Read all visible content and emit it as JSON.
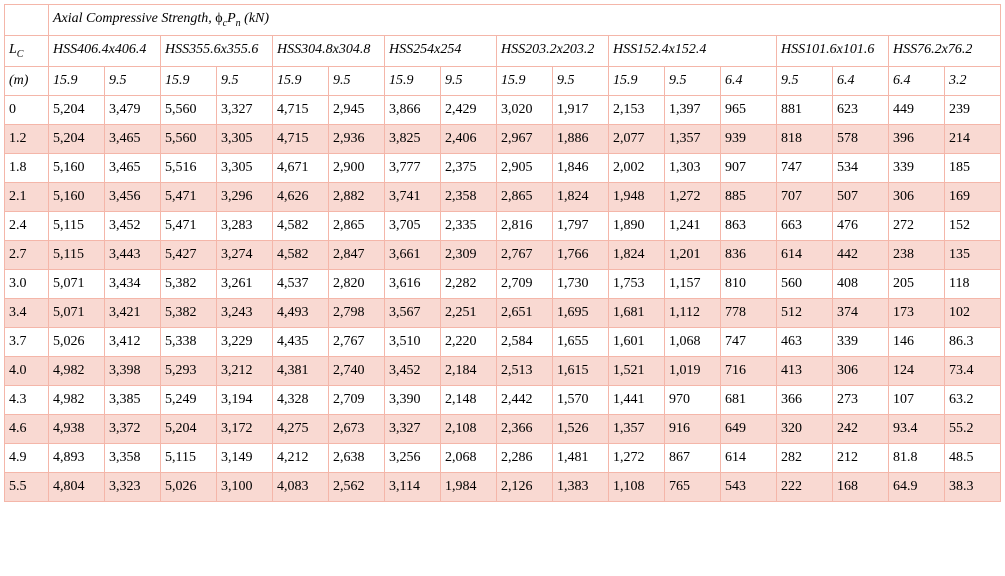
{
  "title": "Axial Compressive Strength, ϕₓPₙ (kN)",
  "lc_label": "L",
  "lc_sub": "C",
  "lc_unit": "(m)",
  "sections": [
    {
      "label": "HSS406.4x406.4",
      "span": 2
    },
    {
      "label": "HSS355.6x355.6",
      "span": 2
    },
    {
      "label": "HSS304.8x304.8",
      "span": 2
    },
    {
      "label": "HSS254x254",
      "span": 2
    },
    {
      "label": "HSS203.2x203.2",
      "span": 2
    },
    {
      "label": "HSS152.4x152.4",
      "span": 3
    },
    {
      "label": "HSS101.6x101.6",
      "span": 2
    },
    {
      "label": "HSS76.2x76.2",
      "span": 2
    }
  ],
  "thicknesses": [
    "15.9",
    "9.5",
    "15.9",
    "9.5",
    "15.9",
    "9.5",
    "15.9",
    "9.5",
    "15.9",
    "9.5",
    "15.9",
    "9.5",
    "6.4",
    "9.5",
    "6.4",
    "6.4",
    "3.2"
  ],
  "rows": [
    {
      "lc": "0",
      "v": [
        "5,204",
        "3,479",
        "5,560",
        "3,327",
        "4,715",
        "2,945",
        "3,866",
        "2,429",
        "3,020",
        "1,917",
        "2,153",
        "1,397",
        "965",
        "881",
        "623",
        "449",
        "239"
      ]
    },
    {
      "lc": "1.2",
      "v": [
        "5,204",
        "3,465",
        "5,560",
        "3,305",
        "4,715",
        "2,936",
        "3,825",
        "2,406",
        "2,967",
        "1,886",
        "2,077",
        "1,357",
        "939",
        "818",
        "578",
        "396",
        "214"
      ]
    },
    {
      "lc": "1.8",
      "v": [
        "5,160",
        "3,465",
        "5,516",
        "3,305",
        "4,671",
        "2,900",
        "3,777",
        "2,375",
        "2,905",
        "1,846",
        "2,002",
        "1,303",
        "907",
        "747",
        "534",
        "339",
        "185"
      ]
    },
    {
      "lc": "2.1",
      "v": [
        "5,160",
        "3,456",
        "5,471",
        "3,296",
        "4,626",
        "2,882",
        "3,741",
        "2,358",
        "2,865",
        "1,824",
        "1,948",
        "1,272",
        "885",
        "707",
        "507",
        "306",
        "169"
      ]
    },
    {
      "lc": "2.4",
      "v": [
        "5,115",
        "3,452",
        "5,471",
        "3,283",
        "4,582",
        "2,865",
        "3,705",
        "2,335",
        "2,816",
        "1,797",
        "1,890",
        "1,241",
        "863",
        "663",
        "476",
        "272",
        "152"
      ]
    },
    {
      "lc": "2.7",
      "v": [
        "5,115",
        "3,443",
        "5,427",
        "3,274",
        "4,582",
        "2,847",
        "3,661",
        "2,309",
        "2,767",
        "1,766",
        "1,824",
        "1,201",
        "836",
        "614",
        "442",
        "238",
        "135"
      ]
    },
    {
      "lc": "3.0",
      "v": [
        "5,071",
        "3,434",
        "5,382",
        "3,261",
        "4,537",
        "2,820",
        "3,616",
        "2,282",
        "2,709",
        "1,730",
        "1,753",
        "1,157",
        "810",
        "560",
        "408",
        "205",
        "118"
      ]
    },
    {
      "lc": "3.4",
      "v": [
        "5,071",
        "3,421",
        "5,382",
        "3,243",
        "4,493",
        "2,798",
        "3,567",
        "2,251",
        "2,651",
        "1,695",
        "1,681",
        "1,112",
        "778",
        "512",
        "374",
        "173",
        "102"
      ]
    },
    {
      "lc": "3.7",
      "v": [
        "5,026",
        "3,412",
        "5,338",
        "3,229",
        "4,435",
        "2,767",
        "3,510",
        "2,220",
        "2,584",
        "1,655",
        "1,601",
        "1,068",
        "747",
        "463",
        "339",
        "146",
        "86.3"
      ]
    },
    {
      "lc": "4.0",
      "v": [
        "4,982",
        "3,398",
        "5,293",
        "3,212",
        "4,381",
        "2,740",
        "3,452",
        "2,184",
        "2,513",
        "1,615",
        "1,521",
        "1,019",
        "716",
        "413",
        "306",
        "124",
        "73.4"
      ]
    },
    {
      "lc": "4.3",
      "v": [
        "4,982",
        "3,385",
        "5,249",
        "3,194",
        "4,328",
        "2,709",
        "3,390",
        "2,148",
        "2,442",
        "1,570",
        "1,441",
        "970",
        "681",
        "366",
        "273",
        "107",
        "63.2"
      ]
    },
    {
      "lc": "4.6",
      "v": [
        "4,938",
        "3,372",
        "5,204",
        "3,172",
        "4,275",
        "2,673",
        "3,327",
        "2,108",
        "2,366",
        "1,526",
        "1,357",
        "916",
        "649",
        "320",
        "242",
        "93.4",
        "55.2"
      ]
    },
    {
      "lc": "4.9",
      "v": [
        "4,893",
        "3,358",
        "5,115",
        "3,149",
        "4,212",
        "2,638",
        "3,256",
        "2,068",
        "2,286",
        "1,481",
        "1,272",
        "867",
        "614",
        "282",
        "212",
        "81.8",
        "48.5"
      ]
    },
    {
      "lc": "5.5",
      "v": [
        "4,804",
        "3,323",
        "5,026",
        "3,100",
        "4,083",
        "2,562",
        "3,114",
        "1,984",
        "2,126",
        "1,383",
        "1,108",
        "765",
        "543",
        "222",
        "168",
        "64.9",
        "38.3"
      ]
    }
  ],
  "colors": {
    "border": "#f4b6a9",
    "shade": "#f9d9d2",
    "background": "#ffffff"
  },
  "font": {
    "family": "Georgia, Times New Roman, serif",
    "size_pt": 14
  }
}
